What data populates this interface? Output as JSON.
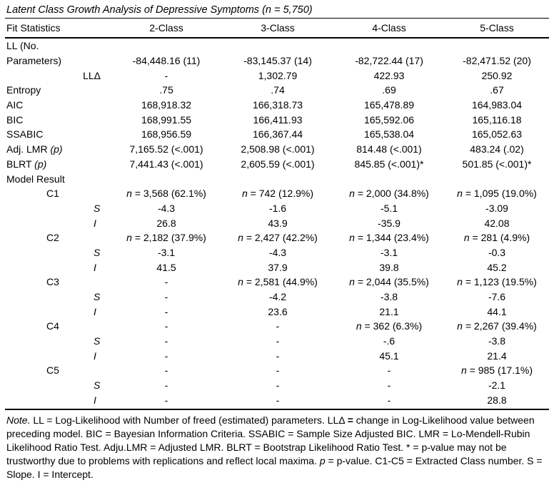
{
  "title": "Latent Class Growth Analysis of Depressive Symptoms (n = 5,750)",
  "table": {
    "columns": [
      "Fit Statistics",
      "2-Class",
      "3-Class",
      "4-Class",
      "5-Class"
    ],
    "rows": [
      {
        "style": "",
        "label": "LL (No.",
        "values": [
          "",
          "",
          "",
          ""
        ]
      },
      {
        "style": "",
        "label": "Parameters)",
        "values": [
          "-84,448.16 (11)",
          "-83,145.37 (14)",
          "-82,722.44 (17)",
          "-82,471.52 (20)"
        ]
      },
      {
        "style": "right",
        "label": "LLΔ",
        "values": [
          "-",
          "1,302.79",
          "422.93",
          "250.92"
        ]
      },
      {
        "style": "",
        "label": "Entropy",
        "values": [
          ".75",
          ".74",
          ".69",
          ".67"
        ]
      },
      {
        "style": "",
        "label": "AIC",
        "values": [
          "168,918.32",
          "166,318.73",
          "165,478.89",
          "164,983.04"
        ]
      },
      {
        "style": "",
        "label": "BIC",
        "values": [
          "168,991.55",
          "166,411.93",
          "165,592.06",
          "165,116.18"
        ]
      },
      {
        "style": "",
        "label": "SSABIC",
        "values": [
          "168,956.59",
          "166,367.44",
          "165,538.04",
          "165,052.63"
        ]
      },
      {
        "style": "",
        "label": [
          {
            "t": "Adj. LMR "
          },
          {
            "t": "(p)",
            "i": 1
          }
        ],
        "values": [
          "7,165.52 (<.001)",
          "2,508.98 (<.001)",
          "814.48 (<.001)",
          "483.24 (.02)"
        ]
      },
      {
        "style": "",
        "label": [
          {
            "t": "BLRT "
          },
          {
            "t": "(p)",
            "i": 1
          }
        ],
        "values": [
          "7,441.43 (<.001)",
          "2,605.59 (<.001)",
          "845.85 (<.001)*",
          "501.85 (<.001)*"
        ]
      },
      {
        "style": "",
        "label": "Model Result",
        "values": [
          "",
          "",
          "",
          ""
        ]
      },
      {
        "style": "indent1",
        "label": "C1",
        "values": [
          [
            {
              "t": "n",
              "i": 1
            },
            {
              "t": " = 3,568 (62.1%)"
            }
          ],
          [
            {
              "t": "n",
              "i": 1
            },
            {
              "t": " = 742 (12.9%)"
            }
          ],
          [
            {
              "t": "n",
              "i": 1
            },
            {
              "t": " = 2,000 (34.8%)"
            }
          ],
          [
            {
              "t": "n",
              "i": 1
            },
            {
              "t": " = 1,095 (19.0%)"
            }
          ]
        ]
      },
      {
        "style": "indent2",
        "label": [
          {
            "t": "S",
            "i": 1
          }
        ],
        "values": [
          "-4.3",
          "-1.6",
          "-5.1",
          "-3.09"
        ]
      },
      {
        "style": "indent2",
        "label": [
          {
            "t": "I",
            "i": 1
          }
        ],
        "values": [
          "26.8",
          "43.9",
          "-35.9",
          "42.08"
        ]
      },
      {
        "style": "indent1",
        "label": "C2",
        "values": [
          [
            {
              "t": "n",
              "i": 1
            },
            {
              "t": " = 2,182 (37.9%)"
            }
          ],
          [
            {
              "t": "n",
              "i": 1
            },
            {
              "t": " = 2,427 (42.2%)"
            }
          ],
          [
            {
              "t": "n",
              "i": 1
            },
            {
              "t": " = 1,344 (23.4%)"
            }
          ],
          [
            {
              "t": "n",
              "i": 1
            },
            {
              "t": " = 281 (4.9%)"
            }
          ]
        ]
      },
      {
        "style": "indent2",
        "label": [
          {
            "t": "S",
            "i": 1
          }
        ],
        "values": [
          "-3.1",
          "-4.3",
          "-3.1",
          "-0.3"
        ]
      },
      {
        "style": "indent2",
        "label": [
          {
            "t": "I",
            "i": 1
          }
        ],
        "values": [
          "41.5",
          "37.9",
          "39.8",
          "45.2"
        ]
      },
      {
        "style": "indent1",
        "label": "C3",
        "values": [
          "-",
          [
            {
              "t": "n",
              "i": 1
            },
            {
              "t": " = 2,581 (44.9%)"
            }
          ],
          [
            {
              "t": "n",
              "i": 1
            },
            {
              "t": " = 2,044 (35.5%)"
            }
          ],
          [
            {
              "t": "n",
              "i": 1
            },
            {
              "t": " = 1,123 (19.5%)"
            }
          ]
        ]
      },
      {
        "style": "indent2",
        "label": [
          {
            "t": "S",
            "i": 1
          }
        ],
        "values": [
          "-",
          "-4.2",
          "-3.8",
          "-7.6"
        ]
      },
      {
        "style": "indent2",
        "label": [
          {
            "t": "I",
            "i": 1
          }
        ],
        "values": [
          "-",
          "23.6",
          "21.1",
          "44.1"
        ]
      },
      {
        "style": "indent1",
        "label": "C4",
        "values": [
          "-",
          "-",
          [
            {
              "t": "n",
              "i": 1
            },
            {
              "t": " = 362 (6.3%)"
            }
          ],
          [
            {
              "t": "n",
              "i": 1
            },
            {
              "t": " = 2,267 (39.4%)"
            }
          ]
        ]
      },
      {
        "style": "indent2",
        "label": [
          {
            "t": "S",
            "i": 1
          }
        ],
        "values": [
          "-",
          "-",
          "-.6",
          "-3.8"
        ]
      },
      {
        "style": "indent2",
        "label": [
          {
            "t": "I",
            "i": 1
          }
        ],
        "values": [
          "-",
          "-",
          "45.1",
          "21.4"
        ]
      },
      {
        "style": "indent1",
        "label": "C5",
        "values": [
          "-",
          "-",
          "-",
          [
            {
              "t": "n",
              "i": 1
            },
            {
              "t": " = 985 (17.1%)"
            }
          ]
        ]
      },
      {
        "style": "indent2",
        "label": [
          {
            "t": "S",
            "i": 1
          }
        ],
        "values": [
          "-",
          "-",
          "-",
          "-2.1"
        ]
      },
      {
        "style": "indent2",
        "label": [
          {
            "t": "I",
            "i": 1
          }
        ],
        "values": [
          "-",
          "-",
          "-",
          "28.8"
        ]
      }
    ]
  },
  "note": [
    {
      "t": "Note.",
      "i": 1
    },
    {
      "t": " LL = Log-Likelihood with Number of freed (estimated) parameters. LLΔ "
    },
    {
      "t": "=",
      "b": 1
    },
    {
      "t": " change in Log-Likelihood value between preceding model. BIC = Bayesian Information Criteria. SSABIC = Sample Size Adjusted BIC. LMR = Lo-Mendell-Rubin Likelihood Ratio Test. Adju.LMR = Adjusted LMR. BLRT = Bootstrap Likelihood Ratio Test. * = p-value may not be trustworthy due to problems with replications and reflect local maxima. "
    },
    {
      "t": "p",
      "i": 1
    },
    {
      "t": " = p-value. C1-C5 = Extracted Class number. S = Slope. I = Intercept."
    }
  ]
}
